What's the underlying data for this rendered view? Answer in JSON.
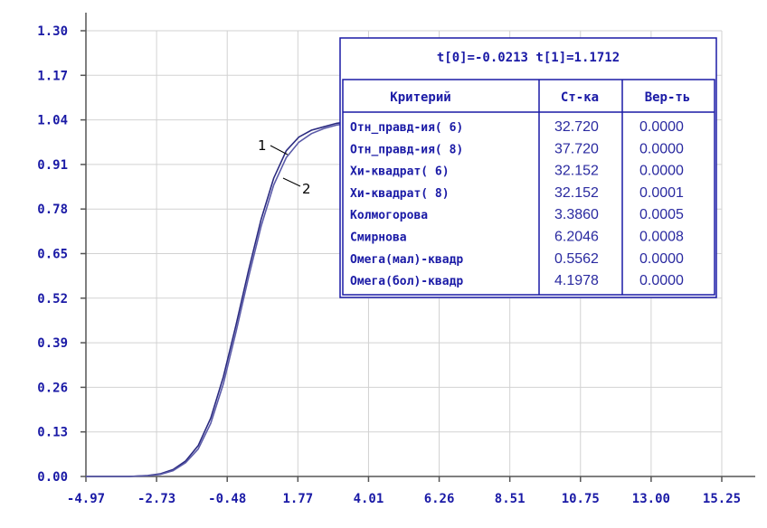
{
  "chart_data": {
    "type": "line",
    "xlim": [
      -4.97,
      15.25
    ],
    "ylim": [
      0,
      1.3
    ],
    "x_ticks": [
      "-4.97",
      "-2.73",
      "-0.48",
      "1.77",
      "4.01",
      "6.26",
      "8.51",
      "10.75",
      "13.00",
      "15.25"
    ],
    "y_ticks": [
      "0.00",
      "0.13",
      "0.26",
      "0.39",
      "0.52",
      "0.65",
      "0.78",
      "0.91",
      "1.04",
      "1.17",
      "1.30"
    ],
    "grid": true,
    "series": [
      {
        "name": "1",
        "color": "#2a2a80",
        "x": [
          -4.97,
          -3.6,
          -3.0,
          -2.6,
          -2.2,
          -1.8,
          -1.4,
          -1.0,
          -0.6,
          -0.2,
          0.2,
          0.6,
          1.0,
          1.4,
          1.8,
          2.2,
          2.6,
          3.0,
          3.4,
          3.8,
          4.01
        ],
        "y": [
          0.0,
          0.0,
          0.003,
          0.008,
          0.02,
          0.045,
          0.09,
          0.17,
          0.29,
          0.44,
          0.6,
          0.75,
          0.87,
          0.95,
          0.99,
          1.01,
          1.02,
          1.03,
          1.035,
          1.035,
          1.035
        ]
      },
      {
        "name": "2",
        "color": "#5a5aa8",
        "x": [
          -4.97,
          -3.6,
          -3.0,
          -2.6,
          -2.2,
          -1.8,
          -1.4,
          -1.0,
          -0.6,
          -0.2,
          0.2,
          0.6,
          1.0,
          1.4,
          1.8,
          2.2,
          2.6,
          3.0,
          3.4,
          3.8,
          4.01
        ],
        "y": [
          0.0,
          0.0,
          0.002,
          0.006,
          0.017,
          0.04,
          0.08,
          0.155,
          0.27,
          0.42,
          0.58,
          0.73,
          0.85,
          0.93,
          0.975,
          1.0,
          1.015,
          1.025,
          1.03,
          1.035,
          1.035
        ]
      }
    ],
    "curve_labels": [
      "1",
      "2"
    ],
    "stats_table": {
      "title": "t[0]=-0.0213 t[1]=1.1712",
      "headers": [
        "Критерий",
        "Ст-ка",
        "Вер-ть"
      ],
      "rows": [
        [
          "Отн_правд-ия( 6)",
          "32.720",
          "0.0000"
        ],
        [
          "Отн_правд-ия( 8)",
          "37.720",
          "0.0000"
        ],
        [
          "Хи-квадрат( 6)",
          "32.152",
          "0.0000"
        ],
        [
          "Хи-квадрат( 8)",
          "32.152",
          "0.0001"
        ],
        [
          "Колмогорова",
          "3.3860",
          "0.0005"
        ],
        [
          "Смирнова",
          "6.2046",
          "0.0008"
        ],
        [
          "Омега(мал)-квадр",
          "0.5562",
          "0.0000"
        ],
        [
          "Омега(бол)-квадр",
          "4.1978",
          "0.0000"
        ]
      ]
    }
  }
}
